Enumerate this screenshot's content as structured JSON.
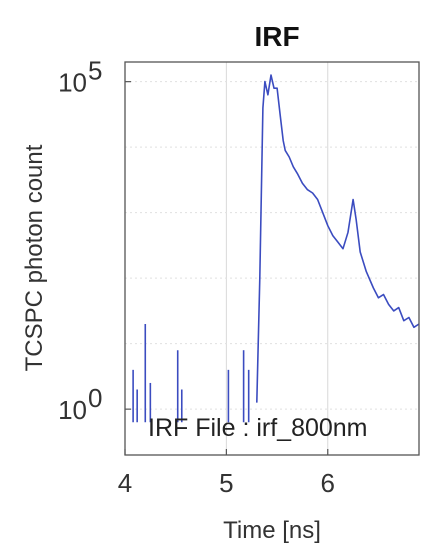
{
  "chart_data": {
    "type": "line",
    "title": "IRF",
    "xlabel": "Time [ns]",
    "ylabel": "TCSPC photon count",
    "xscale": "linear",
    "yscale": "log",
    "xlim": [
      4.0,
      6.9
    ],
    "ylim_exp": [
      -0.7,
      5.3
    ],
    "x_ticks": [
      "4",
      "5",
      "6"
    ],
    "x_tick_values": [
      4,
      5,
      6
    ],
    "y_ticks": [
      {
        "base": "10",
        "exp": "5",
        "value_exp": 5
      },
      {
        "base": "10",
        "exp": "0",
        "value_exp": 0
      }
    ],
    "grid": true,
    "line_color": "#3b4cc0",
    "annotation": "IRF File : irf_800nm",
    "series": [
      {
        "points": [
          [
            5.3,
            0.1
          ],
          [
            5.33,
            2.0
          ],
          [
            5.36,
            4.6
          ],
          [
            5.38,
            5.0
          ],
          [
            5.41,
            4.8
          ],
          [
            5.44,
            5.1
          ],
          [
            5.47,
            4.9
          ],
          [
            5.5,
            4.9
          ],
          [
            5.53,
            4.5
          ],
          [
            5.56,
            4.1
          ],
          [
            5.58,
            3.95
          ],
          [
            5.62,
            3.85
          ],
          [
            5.66,
            3.7
          ],
          [
            5.7,
            3.6
          ],
          [
            5.75,
            3.45
          ],
          [
            5.8,
            3.35
          ],
          [
            5.85,
            3.3
          ],
          [
            5.9,
            3.2
          ],
          [
            5.95,
            3.0
          ],
          [
            6.0,
            2.8
          ],
          [
            6.05,
            2.65
          ],
          [
            6.1,
            2.55
          ],
          [
            6.15,
            2.45
          ],
          [
            6.2,
            2.7
          ],
          [
            6.25,
            3.2
          ],
          [
            6.28,
            2.9
          ],
          [
            6.32,
            2.4
          ],
          [
            6.38,
            2.1
          ],
          [
            6.45,
            1.85
          ],
          [
            6.5,
            1.7
          ],
          [
            6.55,
            1.75
          ],
          [
            6.6,
            1.6
          ],
          [
            6.65,
            1.5
          ],
          [
            6.7,
            1.55
          ],
          [
            6.75,
            1.35
          ],
          [
            6.8,
            1.4
          ],
          [
            6.85,
            1.25
          ],
          [
            6.9,
            1.3
          ]
        ],
        "spikes": [
          {
            "x": 4.08,
            "top": 0.6
          },
          {
            "x": 4.12,
            "top": 0.3
          },
          {
            "x": 4.2,
            "top": 1.3
          },
          {
            "x": 4.25,
            "top": 0.4
          },
          {
            "x": 4.52,
            "top": 0.9
          },
          {
            "x": 4.56,
            "top": 0.3
          },
          {
            "x": 5.02,
            "top": 0.6
          },
          {
            "x": 5.17,
            "top": 0.9
          },
          {
            "x": 5.22,
            "top": 0.6
          }
        ]
      }
    ]
  }
}
